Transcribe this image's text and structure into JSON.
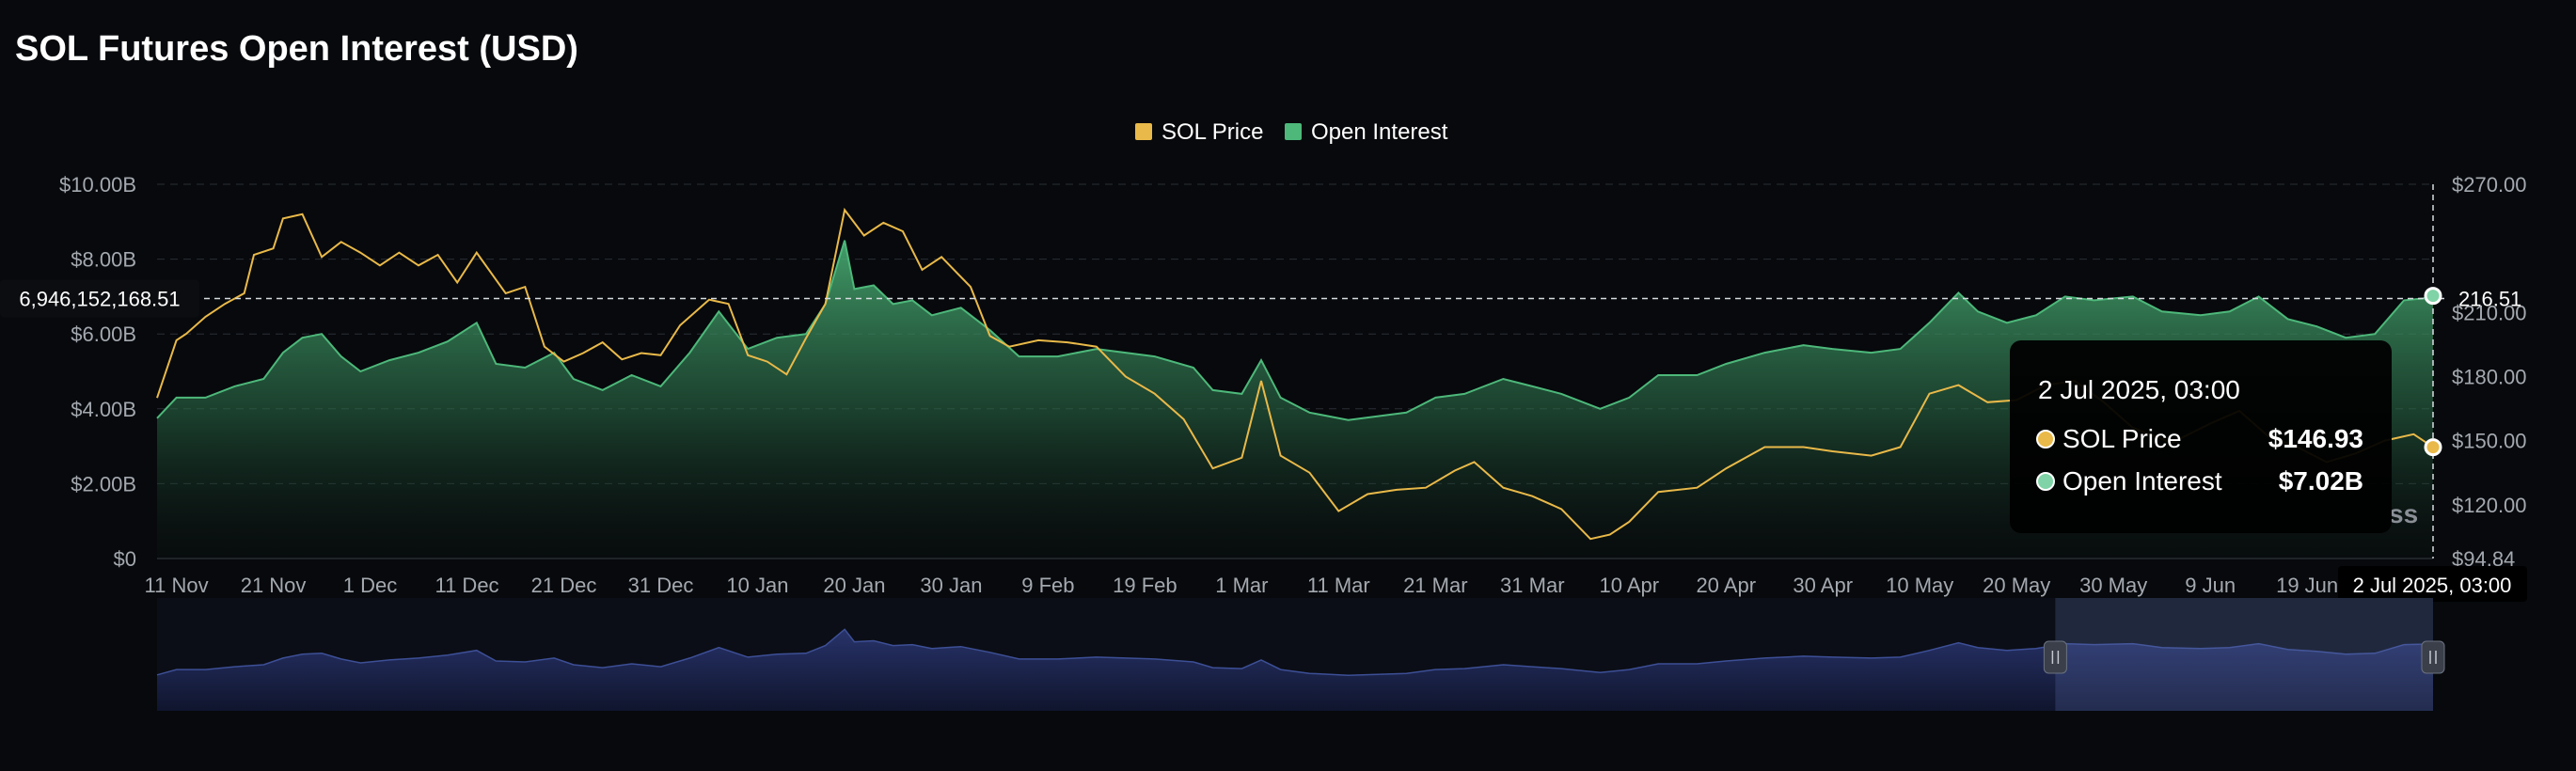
{
  "chart_data": {
    "type": "area",
    "title": "SOL Futures Open Interest (USD)",
    "legend": {
      "placement": "top-center",
      "items": [
        {
          "label": "SOL Price",
          "color": "#e9b949",
          "marker": "square"
        },
        {
          "label": "Open Interest",
          "color": "#4db87a",
          "marker": "square"
        }
      ]
    },
    "x_axis": {
      "start": "2024-11-09",
      "end": "2025-07-02",
      "ticks": [
        "11 Nov",
        "21 Nov",
        "1 Dec",
        "11 Dec",
        "21 Dec",
        "31 Dec",
        "10 Jan",
        "20 Jan",
        "30 Jan",
        "9 Feb",
        "19 Feb",
        "1 Mar",
        "11 Mar",
        "21 Mar",
        "31 Mar",
        "10 Apr",
        "20 Apr",
        "30 Apr",
        "10 May",
        "20 May",
        "30 May",
        "9 Jun",
        "19 Jun"
      ],
      "tick_dates": [
        "2024-11-11",
        "2024-11-21",
        "2024-12-01",
        "2024-12-11",
        "2024-12-21",
        "2024-12-31",
        "2025-01-10",
        "2025-01-20",
        "2025-01-30",
        "2025-02-09",
        "2025-02-19",
        "2025-03-01",
        "2025-03-11",
        "2025-03-21",
        "2025-03-31",
        "2025-04-10",
        "2025-04-20",
        "2025-04-30",
        "2025-05-10",
        "2025-05-20",
        "2025-05-30",
        "2025-06-09",
        "2025-06-19"
      ]
    },
    "y_axis_left": {
      "label": "",
      "range": [
        0,
        10000000000
      ],
      "ticks": [
        0,
        2000000000,
        4000000000,
        6000000000,
        8000000000,
        10000000000
      ],
      "tick_labels": [
        "$0",
        "$2.00B",
        "$4.00B",
        "$6.00B",
        "$8.00B",
        "$10.00B"
      ]
    },
    "y_axis_right": {
      "label": "",
      "range": [
        94.84,
        270
      ],
      "ticks": [
        94.84,
        120,
        150,
        180,
        210,
        240,
        270
      ],
      "tick_labels": [
        "$94.84",
        "$120.00",
        "$150.00",
        "$180.00",
        "$210.00",
        "$240.00",
        "$270.00"
      ]
    },
    "grid": true,
    "series": [
      {
        "name": "Open Interest",
        "axis": "left",
        "unit": "USD",
        "color": "#4db87a",
        "points": [
          [
            "2024-11-09",
            3750000000.0
          ],
          [
            "2024-11-11",
            4300000000.0
          ],
          [
            "2024-11-14",
            4300000000.0
          ],
          [
            "2024-11-17",
            4600000000.0
          ],
          [
            "2024-11-20",
            4800000000.0
          ],
          [
            "2024-11-22",
            5500000000.0
          ],
          [
            "2024-11-24",
            5900000000.0
          ],
          [
            "2024-11-26",
            6000000000.0
          ],
          [
            "2024-11-28",
            5400000000.0
          ],
          [
            "2024-11-30",
            5000000000.0
          ],
          [
            "2024-12-03",
            5300000000.0
          ],
          [
            "2024-12-06",
            5500000000.0
          ],
          [
            "2024-12-09",
            5800000000.0
          ],
          [
            "2024-12-12",
            6300000000.0
          ],
          [
            "2024-12-14",
            5200000000.0
          ],
          [
            "2024-12-17",
            5100000000.0
          ],
          [
            "2024-12-20",
            5500000000.0
          ],
          [
            "2024-12-22",
            4800000000.0
          ],
          [
            "2024-12-25",
            4500000000.0
          ],
          [
            "2024-12-28",
            4900000000.0
          ],
          [
            "2024-12-31",
            4600000000.0
          ],
          [
            "2025-01-03",
            5500000000.0
          ],
          [
            "2025-01-06",
            6600000000.0
          ],
          [
            "2025-01-09",
            5600000000.0
          ],
          [
            "2025-01-12",
            5900000000.0
          ],
          [
            "2025-01-15",
            6000000000.0
          ],
          [
            "2025-01-17",
            6800000000.0
          ],
          [
            "2025-01-19",
            8500000000.0
          ],
          [
            "2025-01-20",
            7200000000.0
          ],
          [
            "2025-01-22",
            7300000000.0
          ],
          [
            "2025-01-24",
            6800000000.0
          ],
          [
            "2025-01-26",
            6900000000.0
          ],
          [
            "2025-01-28",
            6500000000.0
          ],
          [
            "2025-01-31",
            6700000000.0
          ],
          [
            "2025-02-03",
            6100000000.0
          ],
          [
            "2025-02-06",
            5400000000.0
          ],
          [
            "2025-02-10",
            5400000000.0
          ],
          [
            "2025-02-14",
            5600000000.0
          ],
          [
            "2025-02-17",
            5500000000.0
          ],
          [
            "2025-02-20",
            5400000000.0
          ],
          [
            "2025-02-24",
            5100000000.0
          ],
          [
            "2025-02-26",
            4500000000.0
          ],
          [
            "2025-03-01",
            4400000000.0
          ],
          [
            "2025-03-03",
            5300000000.0
          ],
          [
            "2025-03-05",
            4300000000.0
          ],
          [
            "2025-03-08",
            3900000000.0
          ],
          [
            "2025-03-12",
            3700000000.0
          ],
          [
            "2025-03-15",
            3800000000.0
          ],
          [
            "2025-03-18",
            3900000000.0
          ],
          [
            "2025-03-21",
            4300000000.0
          ],
          [
            "2025-03-24",
            4400000000.0
          ],
          [
            "2025-03-28",
            4800000000.0
          ],
          [
            "2025-03-31",
            4600000000.0
          ],
          [
            "2025-04-03",
            4400000000.0
          ],
          [
            "2025-04-07",
            4000000000.0
          ],
          [
            "2025-04-10",
            4300000000.0
          ],
          [
            "2025-04-13",
            4900000000.0
          ],
          [
            "2025-04-17",
            4900000000.0
          ],
          [
            "2025-04-20",
            5200000000.0
          ],
          [
            "2025-04-24",
            5500000000.0
          ],
          [
            "2025-04-28",
            5700000000.0
          ],
          [
            "2025-05-01",
            5600000000.0
          ],
          [
            "2025-05-05",
            5500000000.0
          ],
          [
            "2025-05-08",
            5600000000.0
          ],
          [
            "2025-05-11",
            6300000000.0
          ],
          [
            "2025-05-14",
            7100000000.0
          ],
          [
            "2025-05-16",
            6600000000.0
          ],
          [
            "2025-05-19",
            6300000000.0
          ],
          [
            "2025-05-22",
            6500000000.0
          ],
          [
            "2025-05-25",
            7000000000.0
          ],
          [
            "2025-05-28",
            6900000000.0
          ],
          [
            "2025-06-01",
            7000000000.0
          ],
          [
            "2025-06-04",
            6600000000.0
          ],
          [
            "2025-06-08",
            6500000000.0
          ],
          [
            "2025-06-11",
            6600000000.0
          ],
          [
            "2025-06-14",
            7000000000.0
          ],
          [
            "2025-06-17",
            6400000000.0
          ],
          [
            "2025-06-20",
            6200000000.0
          ],
          [
            "2025-06-23",
            5900000000.0
          ],
          [
            "2025-06-26",
            6000000000.0
          ],
          [
            "2025-06-29",
            6900000000.0
          ],
          [
            "2025-07-01",
            6950000000.0
          ],
          [
            "2025-07-02",
            7020000000.0
          ]
        ]
      },
      {
        "name": "SOL Price",
        "axis": "right",
        "unit": "USD",
        "color": "#e9b949",
        "points": [
          [
            "2024-11-09",
            170
          ],
          [
            "2024-11-11",
            197
          ],
          [
            "2024-11-12",
            200
          ],
          [
            "2024-11-14",
            208
          ],
          [
            "2024-11-16",
            214
          ],
          [
            "2024-11-18",
            219
          ],
          [
            "2024-11-19",
            237
          ],
          [
            "2024-11-21",
            240
          ],
          [
            "2024-11-22",
            254
          ],
          [
            "2024-11-24",
            256
          ],
          [
            "2024-11-26",
            236
          ],
          [
            "2024-11-28",
            243
          ],
          [
            "2024-11-30",
            238
          ],
          [
            "2024-12-02",
            232
          ],
          [
            "2024-12-04",
            238
          ],
          [
            "2024-12-06",
            232
          ],
          [
            "2024-12-08",
            237
          ],
          [
            "2024-12-10",
            224
          ],
          [
            "2024-12-12",
            238
          ],
          [
            "2024-12-15",
            219
          ],
          [
            "2024-12-17",
            222
          ],
          [
            "2024-12-19",
            194
          ],
          [
            "2024-12-21",
            187
          ],
          [
            "2024-12-23",
            191
          ],
          [
            "2024-12-25",
            196
          ],
          [
            "2024-12-27",
            188
          ],
          [
            "2024-12-29",
            191
          ],
          [
            "2024-12-31",
            190
          ],
          [
            "2025-01-02",
            204
          ],
          [
            "2025-01-05",
            216
          ],
          [
            "2025-01-07",
            214
          ],
          [
            "2025-01-09",
            190
          ],
          [
            "2025-01-11",
            187
          ],
          [
            "2025-01-13",
            181
          ],
          [
            "2025-01-15",
            198
          ],
          [
            "2025-01-17",
            214
          ],
          [
            "2025-01-19",
            258
          ],
          [
            "2025-01-21",
            246
          ],
          [
            "2025-01-23",
            252
          ],
          [
            "2025-01-25",
            248
          ],
          [
            "2025-01-27",
            230
          ],
          [
            "2025-01-29",
            236
          ],
          [
            "2025-02-01",
            222
          ],
          [
            "2025-02-03",
            199
          ],
          [
            "2025-02-05",
            194
          ],
          [
            "2025-02-08",
            197
          ],
          [
            "2025-02-11",
            196
          ],
          [
            "2025-02-14",
            194
          ],
          [
            "2025-02-17",
            180
          ],
          [
            "2025-02-20",
            172
          ],
          [
            "2025-02-23",
            160
          ],
          [
            "2025-02-26",
            137
          ],
          [
            "2025-03-01",
            142
          ],
          [
            "2025-03-03",
            178
          ],
          [
            "2025-03-05",
            143
          ],
          [
            "2025-03-08",
            135
          ],
          [
            "2025-03-11",
            117
          ],
          [
            "2025-03-14",
            125
          ],
          [
            "2025-03-17",
            127
          ],
          [
            "2025-03-20",
            128
          ],
          [
            "2025-03-23",
            136
          ],
          [
            "2025-03-25",
            140
          ],
          [
            "2025-03-28",
            128
          ],
          [
            "2025-03-31",
            124
          ],
          [
            "2025-04-03",
            118
          ],
          [
            "2025-04-06",
            104
          ],
          [
            "2025-04-08",
            106
          ],
          [
            "2025-04-10",
            112
          ],
          [
            "2025-04-13",
            126
          ],
          [
            "2025-04-17",
            128
          ],
          [
            "2025-04-20",
            137
          ],
          [
            "2025-04-24",
            147
          ],
          [
            "2025-04-28",
            147
          ],
          [
            "2025-05-01",
            145
          ],
          [
            "2025-05-05",
            143
          ],
          [
            "2025-05-08",
            147
          ],
          [
            "2025-05-11",
            172
          ],
          [
            "2025-05-14",
            176
          ],
          [
            "2025-05-17",
            168
          ],
          [
            "2025-05-20",
            169
          ],
          [
            "2025-05-23",
            176
          ],
          [
            "2025-05-26",
            178
          ],
          [
            "2025-05-29",
            168
          ],
          [
            "2025-06-01",
            156
          ],
          [
            "2025-06-05",
            149
          ],
          [
            "2025-06-09",
            158
          ],
          [
            "2025-06-12",
            164
          ],
          [
            "2025-06-15",
            152
          ],
          [
            "2025-06-18",
            147
          ],
          [
            "2025-06-21",
            140
          ],
          [
            "2025-06-24",
            144
          ],
          [
            "2025-06-27",
            150
          ],
          [
            "2025-06-30",
            153
          ],
          [
            "2025-07-02",
            146.93
          ]
        ]
      }
    ],
    "crosshair": {
      "left_value_label": "6,946,152,168.51",
      "right_value_label": "216.51",
      "x_label": "2 Jul 2025, 03:00"
    },
    "tooltip": {
      "title": "2 Jul 2025, 03:00",
      "rows": [
        {
          "label": "SOL Price",
          "value": "$146.93",
          "color": "#e9b949"
        },
        {
          "label": "Open Interest",
          "value": "$7.02B",
          "color": "#7fd3a6"
        }
      ]
    },
    "watermark": "ss",
    "navigator": {
      "selection_start": "2025-05-24",
      "selection_end": "2025-07-02",
      "color": "#3d4f96"
    }
  }
}
